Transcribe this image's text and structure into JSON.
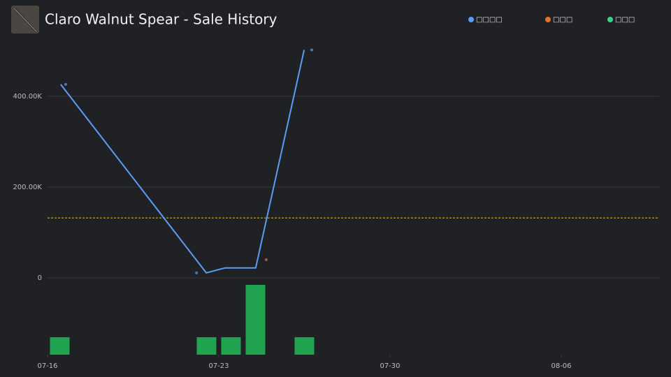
{
  "chart_data": {
    "type": "line",
    "title": "Claro Walnut Spear - Sale History",
    "xlim": [
      0,
      25
    ],
    "xticks": [
      {
        "value": 0,
        "label": "07-16"
      },
      {
        "value": 7,
        "label": "07-23"
      },
      {
        "value": 14,
        "label": "07-30"
      },
      {
        "value": 21,
        "label": "08-06"
      }
    ],
    "ylim": [
      0,
      535000
    ],
    "yticks": [
      0,
      {
        "value": 200000,
        "label": "200.00K"
      },
      {
        "value": 400000,
        "label": "400.00K"
      }
    ],
    "grid": true,
    "reference_line": {
      "value": 132000,
      "color": "#e6c229"
    },
    "series": [
      {
        "name": "□□□□",
        "type": "line",
        "color": "#5b9cf6",
        "x": [
          0.54,
          6.49,
          7.26,
          8.51,
          10.49
        ],
        "values": [
          426000,
          11000,
          22000,
          22000,
          502000
        ]
      },
      {
        "type": "scatter",
        "color": "#5b9cf6",
        "x": [
          0.74,
          6.09,
          10.8
        ],
        "values": [
          426000,
          11000,
          502000
        ]
      },
      {
        "name": "□□□",
        "type": "scatter",
        "color": "#e8712f",
        "x": [
          8.94
        ],
        "values": [
          40000
        ]
      },
      {
        "name": "□□□",
        "type": "bar",
        "color": "#22a352",
        "legend_color": "#3ecf8e",
        "x": [
          0.5,
          6.5,
          7.5,
          8.5,
          10.5
        ],
        "values": [
          1,
          1,
          1,
          4,
          1
        ]
      }
    ]
  }
}
